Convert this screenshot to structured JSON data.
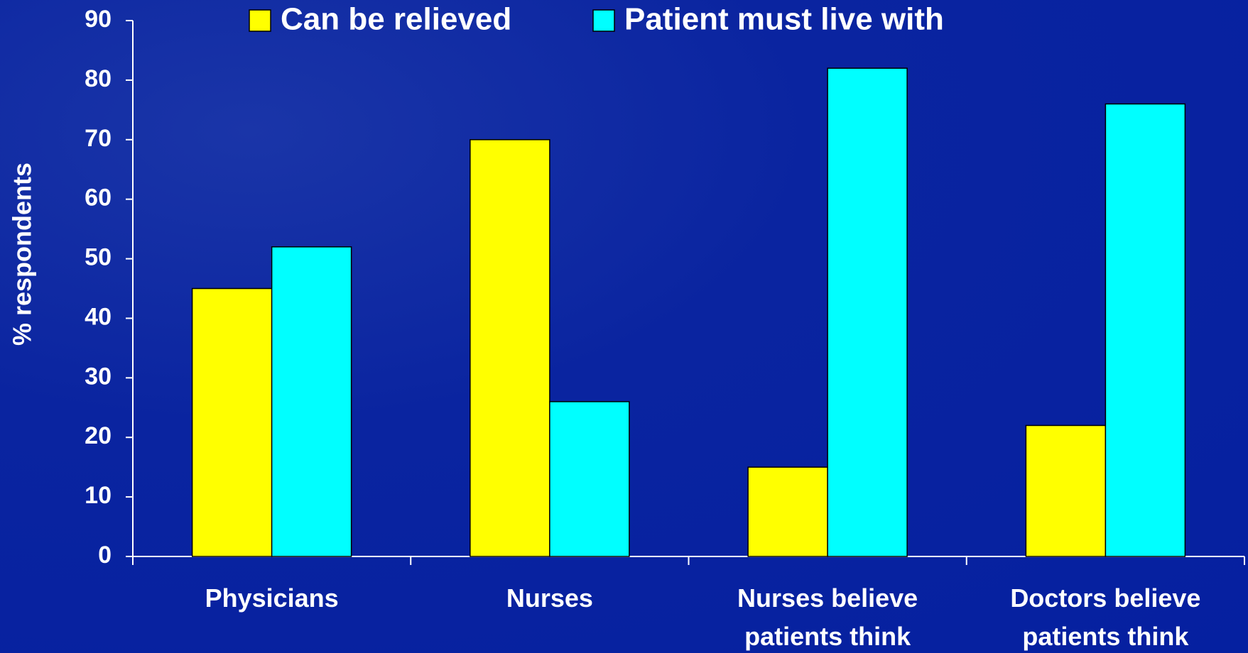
{
  "chart_data": {
    "type": "bar",
    "y_label": "% respondents",
    "categories": [
      "Physicians",
      "Nurses",
      "Nurses believe patients think",
      "Doctors believe patients think"
    ],
    "series": [
      {
        "name": "Can be relieved",
        "color": "#ffff00",
        "values": [
          45,
          70,
          15,
          22
        ]
      },
      {
        "name": "Patient must live with",
        "color": "#00ffff",
        "values": [
          52,
          26,
          82,
          76
        ]
      }
    ],
    "ylim": [
      0,
      90
    ],
    "yticks": [
      0,
      10,
      20,
      30,
      40,
      50,
      60,
      70,
      80,
      90
    ],
    "legend": "top"
  }
}
